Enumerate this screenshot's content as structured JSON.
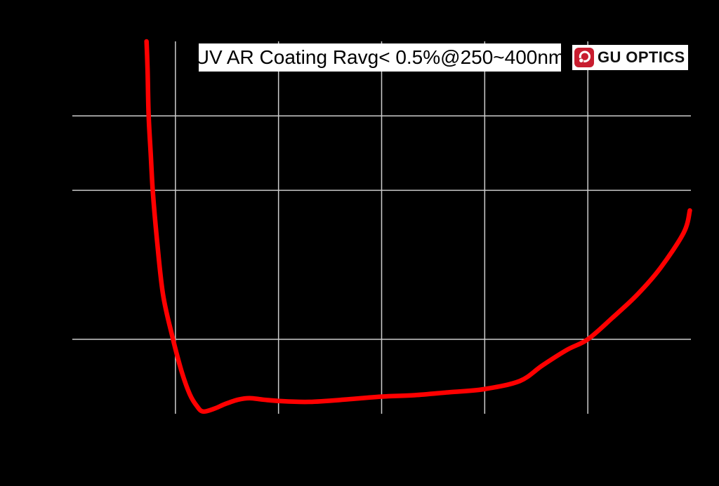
{
  "chart_title": "UV AR Coating Ravg< 0.5%@250~400nm",
  "logo": {
    "text": "GU OPTICS"
  },
  "colors": {
    "background": "#000000",
    "gridline": "#cdcdcd",
    "curve": "#ff0000",
    "title_box_bg": "#ffffff",
    "title_text": "#000000",
    "logo_red": "#c81d2f"
  },
  "chart_data": {
    "type": "line",
    "title": "UV AR Coating Ravg< 0.5%@250~400nm",
    "xlabel": "",
    "ylabel": "",
    "grid": "on",
    "legend": "none",
    "axis_tick_labels_visible": false,
    "x_axis": {
      "divisions": 6,
      "gridlines_at_division": [
        1,
        2,
        3,
        4,
        5
      ]
    },
    "y_axis": {
      "divisions": 5,
      "gridlines_at_division": [
        1,
        3,
        4
      ]
    },
    "series": [
      {
        "name": "reflectance-curve",
        "color": "#ff0000",
        "units_note": "points in grid divisions: x 0-6 left to right, y 0-5 bottom to top",
        "points_grid_units": [
          [
            0.72,
            5.0
          ],
          [
            0.73,
            4.61
          ],
          [
            0.74,
            4.01
          ],
          [
            0.76,
            3.5
          ],
          [
            0.78,
            3.0
          ],
          [
            0.82,
            2.35
          ],
          [
            0.88,
            1.6
          ],
          [
            0.97,
            1.04
          ],
          [
            1.06,
            0.57
          ],
          [
            1.14,
            0.26
          ],
          [
            1.21,
            0.1
          ],
          [
            1.27,
            0.03
          ],
          [
            1.38,
            0.07
          ],
          [
            1.48,
            0.13
          ],
          [
            1.61,
            0.19
          ],
          [
            1.72,
            0.21
          ],
          [
            1.85,
            0.19
          ],
          [
            2.02,
            0.17
          ],
          [
            2.3,
            0.16
          ],
          [
            2.64,
            0.19
          ],
          [
            2.99,
            0.23
          ],
          [
            3.32,
            0.25
          ],
          [
            3.66,
            0.29
          ],
          [
            3.99,
            0.33
          ],
          [
            4.34,
            0.44
          ],
          [
            4.56,
            0.65
          ],
          [
            4.8,
            0.86
          ],
          [
            5.0,
            1.0
          ],
          [
            5.24,
            1.29
          ],
          [
            5.48,
            1.6
          ],
          [
            5.7,
            1.95
          ],
          [
            5.93,
            2.43
          ],
          [
            5.99,
            2.73
          ]
        ]
      }
    ]
  }
}
